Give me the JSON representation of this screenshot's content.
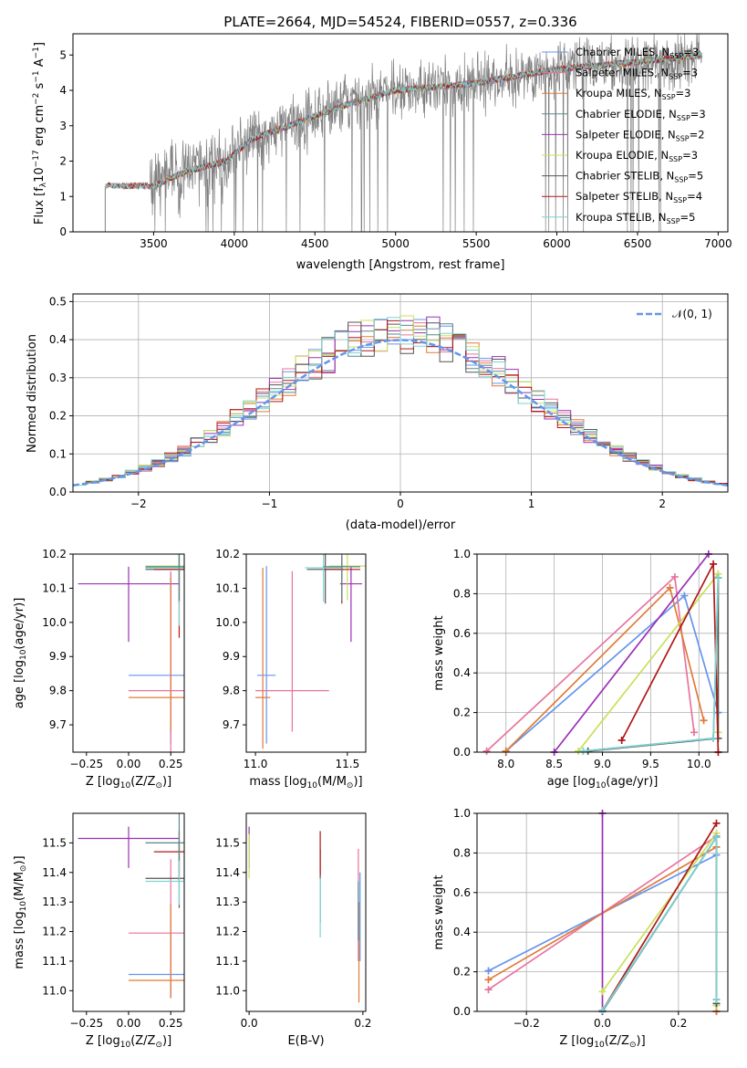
{
  "figure": {
    "title": "PLATE=2664, MJD=54524, FIBERID=0557, z=0.336"
  },
  "models": [
    {
      "name": "Chabrier MILES, N",
      "sub": "SSP",
      "eq": "=3",
      "color": "#6495ed"
    },
    {
      "name": "Salpeter MILES, N",
      "sub": "SSP",
      "eq": "=3",
      "color": "#e8739e"
    },
    {
      "name": "Kroupa MILES, N",
      "sub": "SSP",
      "eq": "=3",
      "color": "#e07b39"
    },
    {
      "name": "Chabrier ELODIE, N",
      "sub": "SSP",
      "eq": "=3",
      "color": "#5a8a8a"
    },
    {
      "name": "Salpeter ELODIE, N",
      "sub": "SSP",
      "eq": "=2",
      "color": "#9b30b5"
    },
    {
      "name": "Kroupa ELODIE, N",
      "sub": "SSP",
      "eq": "=3",
      "color": "#c8e05a"
    },
    {
      "name": "Chabrier STELIB, N",
      "sub": "SSP",
      "eq": "=5",
      "color": "#555555"
    },
    {
      "name": "Salpeter STELIB, N",
      "sub": "SSP",
      "eq": "=4",
      "color": "#b01818"
    },
    {
      "name": "Kroupa STELIB, N",
      "sub": "SSP",
      "eq": "=5",
      "color": "#7fd3d3"
    }
  ],
  "chart_data": [
    {
      "id": "spectrum",
      "type": "line",
      "xlabel": "wavelength [Angstrom, rest frame]",
      "ylabel": "Flux [f",
      "ylabel_parts": {
        "lambda": "λ",
        "exp1": "−17",
        "mid": " erg cm",
        "exp2": "−2",
        "s": " s",
        "exp3": "−1",
        "A": " A",
        "exp4": "−1",
        "close": "]",
        "ten": "10"
      },
      "xlim": [
        3000,
        7060
      ],
      "ylim": [
        0,
        5.6
      ],
      "xticks": [
        3500,
        4000,
        4500,
        5000,
        5500,
        6000,
        6500,
        7000
      ],
      "yticks": [
        0,
        1,
        2,
        3,
        4,
        5
      ],
      "data_color": "#808080",
      "x_range_data": [
        3200,
        6900
      ],
      "continuum_points": [
        [
          3200,
          1.3
        ],
        [
          3500,
          1.3
        ],
        [
          3700,
          1.7
        ],
        [
          3950,
          2.0
        ],
        [
          4100,
          2.6
        ],
        [
          4400,
          3.1
        ],
        [
          4700,
          3.6
        ],
        [
          5000,
          4.0
        ],
        [
          5500,
          4.2
        ],
        [
          6000,
          4.6
        ],
        [
          6500,
          4.8
        ],
        [
          6900,
          5.0
        ]
      ]
    },
    {
      "id": "residuals",
      "type": "histogram",
      "xlabel": "(data-model)/error",
      "ylabel": "Normed distribution",
      "xlim": [
        -2.5,
        2.5
      ],
      "ylim": [
        0,
        0.52
      ],
      "xticks": [
        -2,
        -1,
        0,
        1,
        2
      ],
      "yticks": [
        0,
        0.1,
        0.2,
        0.3,
        0.4,
        0.5
      ],
      "bin_width": 0.1,
      "gaussian_label": "𝒩(0, 1)",
      "gaussian_color": "#6495ed",
      "grid": true
    },
    {
      "id": "age_vs_Z",
      "type": "errorbar",
      "xlabel": "Z [log",
      "xlabel_sub": "10",
      "xlabel_rest": "(Z/Z",
      "xlabel_sun": "⊙",
      "xlabel_close": ")]",
      "ylabel": "age  [log",
      "ylabel_sub": "10",
      "ylabel_rest": "(age/yr)]",
      "xlim": [
        -0.33,
        0.33
      ],
      "ylim": [
        9.62,
        10.2
      ],
      "xticks": [
        -0.25,
        0.0,
        0.25
      ],
      "yticks": [
        9.7,
        9.8,
        9.9,
        10.0,
        10.1,
        10.2
      ],
      "points": [
        {
          "c": 4,
          "x": 0.0,
          "y": 10.113,
          "xerr": 0.3,
          "yerr": [
            0.17,
            0.05
          ]
        },
        {
          "c": 0,
          "x": 0.25,
          "y": 9.845,
          "xerr": 0.25,
          "yerr": [
            0.2,
            0.3
          ]
        },
        {
          "c": 1,
          "x": 0.25,
          "y": 9.8,
          "xerr": 0.25,
          "yerr": [
            0.2,
            0.35
          ]
        },
        {
          "c": 2,
          "x": 0.25,
          "y": 9.78,
          "xerr": 0.25,
          "yerr": [
            0.1,
            0.35
          ]
        },
        {
          "c": 5,
          "x": 0.3,
          "y": 10.165,
          "xerr": 0.2,
          "yerr": [
            0.1,
            0.05
          ]
        },
        {
          "c": 6,
          "x": 0.3,
          "y": 10.155,
          "xerr": 0.2,
          "yerr": [
            0.1,
            0.05
          ]
        },
        {
          "c": 7,
          "x": 0.3,
          "y": 10.155,
          "xerr": 0.15,
          "yerr": [
            0.2,
            0.04
          ]
        },
        {
          "c": 8,
          "x": 0.3,
          "y": 10.16,
          "xerr": 0.2,
          "yerr": [
            0.17,
            0.04
          ]
        },
        {
          "c": 3,
          "x": 0.3,
          "y": 10.163,
          "xerr": 0.2,
          "yerr": [
            0.1,
            0.04
          ]
        }
      ]
    },
    {
      "id": "age_vs_mass",
      "type": "errorbar",
      "xlabel": "mass [log",
      "xlabel_sub": "10",
      "xlabel_rest": "(M/M",
      "xlabel_sun": "⊙",
      "xlabel_close": ")]",
      "xlim": [
        10.95,
        11.6
      ],
      "ylim": [
        9.62,
        10.2
      ],
      "xticks": [
        11.0,
        11.5
      ],
      "yticks": [
        9.7,
        9.8,
        9.9,
        10.0,
        10.1,
        10.2
      ],
      "points": [
        {
          "c": 4,
          "x": 11.52,
          "y": 10.113,
          "xerr": 0.06,
          "yerr": [
            0.17,
            0.05
          ]
        },
        {
          "c": 0,
          "x": 11.06,
          "y": 9.845,
          "xerr": 0.05,
          "yerr": [
            0.2,
            0.32
          ]
        },
        {
          "c": 1,
          "x": 11.2,
          "y": 9.8,
          "xerr": 0.2,
          "yerr": [
            0.12,
            0.35
          ]
        },
        {
          "c": 2,
          "x": 11.04,
          "y": 9.78,
          "xerr": 0.04,
          "yerr": [
            0.15,
            0.38
          ]
        },
        {
          "c": 5,
          "x": 11.5,
          "y": 10.165,
          "xerr": 0.1,
          "yerr": [
            0.1,
            0.05
          ]
        },
        {
          "c": 6,
          "x": 11.38,
          "y": 10.155,
          "xerr": 0.1,
          "yerr": [
            0.1,
            0.05
          ]
        },
        {
          "c": 7,
          "x": 11.47,
          "y": 10.155,
          "xerr": 0.1,
          "yerr": [
            0.1,
            0.04
          ]
        },
        {
          "c": 8,
          "x": 11.37,
          "y": 10.16,
          "xerr": 0.1,
          "yerr": [
            0.1,
            0.04
          ]
        },
        {
          "c": 3,
          "x": 11.47,
          "y": 10.163,
          "xerr": 0.1,
          "yerr": [
            0.1,
            0.04
          ]
        }
      ]
    },
    {
      "id": "weight_vs_age",
      "type": "line",
      "xlabel": "age  [log",
      "xlabel_sub": "10",
      "xlabel_rest": "(age/yr)]",
      "ylabel": "mass weight",
      "xlim": [
        7.7,
        10.3
      ],
      "ylim": [
        0,
        1.0
      ],
      "xticks": [
        8.0,
        8.5,
        9.0,
        9.5,
        10.0
      ],
      "yticks": [
        0.0,
        0.2,
        0.4,
        0.6,
        0.8,
        1.0
      ],
      "series": [
        {
          "c": 0,
          "x": [
            8.0,
            9.85,
            10.2
          ],
          "y": [
            0.005,
            0.79,
            0.2
          ]
        },
        {
          "c": 1,
          "x": [
            7.8,
            9.75,
            9.95
          ],
          "y": [
            0.005,
            0.885,
            0.1
          ]
        },
        {
          "c": 2,
          "x": [
            8.0,
            9.7,
            10.05
          ],
          "y": [
            0.005,
            0.83,
            0.16
          ]
        },
        {
          "c": 3,
          "x": [
            8.8,
            10.15,
            10.2
          ],
          "y": [
            0.005,
            0.07,
            0.88
          ]
        },
        {
          "c": 4,
          "x": [
            8.5,
            10.1
          ],
          "y": [
            0.0,
            1.0
          ]
        },
        {
          "c": 5,
          "x": [
            8.75,
            10.2,
            10.2
          ],
          "y": [
            0.005,
            0.9,
            0.1
          ]
        },
        {
          "c": 6,
          "x": [
            8.85,
            10.2,
            10.2
          ],
          "y": [
            0.005,
            0.07,
            0.88
          ]
        },
        {
          "c": 7,
          "x": [
            9.2,
            10.15,
            10.2
          ],
          "y": [
            0.06,
            0.95,
            0.0
          ]
        },
        {
          "c": 8,
          "x": [
            8.8,
            10.15,
            10.2
          ],
          "y": [
            0.005,
            0.07,
            0.88
          ]
        }
      ]
    },
    {
      "id": "mass_vs_Z",
      "type": "errorbar",
      "xlabel": "Z [log",
      "xlabel_sub": "10",
      "xlabel_rest": "(Z/Z",
      "xlabel_sun": "⊙",
      "xlabel_close": ")]",
      "ylabel": "mass [log",
      "ylabel_sub": "10",
      "ylabel_rest": "(M/M",
      "ylabel_sun": "⊙",
      "ylabel_close": ")]",
      "xlim": [
        -0.33,
        0.33
      ],
      "ylim": [
        10.93,
        11.6
      ],
      "xticks": [
        -0.25,
        0.0,
        0.25
      ],
      "yticks": [
        11.0,
        11.1,
        11.2,
        11.3,
        11.4,
        11.5
      ],
      "points": [
        {
          "c": 4,
          "x": 0.0,
          "y": 11.515,
          "xerr": 0.3,
          "yerr": [
            0.1,
            0.04
          ]
        },
        {
          "c": 0,
          "x": 0.25,
          "y": 11.055,
          "xerr": 0.25,
          "yerr": [
            0.08,
            0.17
          ]
        },
        {
          "c": 1,
          "x": 0.25,
          "y": 11.195,
          "xerr": 0.25,
          "yerr": [
            0.2,
            0.25
          ]
        },
        {
          "c": 2,
          "x": 0.25,
          "y": 11.035,
          "xerr": 0.25,
          "yerr": [
            0.06,
            0.26
          ]
        },
        {
          "c": 5,
          "x": 0.3,
          "y": 11.5,
          "xerr": 0.2,
          "yerr": [
            0.1,
            0.04
          ]
        },
        {
          "c": 6,
          "x": 0.3,
          "y": 11.38,
          "xerr": 0.2,
          "yerr": [
            0.1,
            0.12
          ]
        },
        {
          "c": 7,
          "x": 0.3,
          "y": 11.47,
          "xerr": 0.15,
          "yerr": [
            0.1,
            0.07
          ]
        },
        {
          "c": 8,
          "x": 0.3,
          "y": 11.37,
          "xerr": 0.2,
          "yerr": [
            0.08,
            0.1
          ]
        },
        {
          "c": 3,
          "x": 0.3,
          "y": 11.5,
          "xerr": 0.2,
          "yerr": [
            0.06,
            0.1
          ]
        }
      ]
    },
    {
      "id": "mass_vs_ebv",
      "type": "errorbar",
      "xlabel": "E(B-V)",
      "xlim": [
        -0.005,
        0.205
      ],
      "ylim": [
        10.93,
        11.6
      ],
      "xticks": [
        0.0,
        0.2
      ],
      "yticks": [
        11.0,
        11.1,
        11.2,
        11.3,
        11.4,
        11.5
      ],
      "points": [
        {
          "c": 4,
          "x": 0.0,
          "y": 11.515,
          "xerr": 0,
          "yerr": [
            0.1,
            0.04
          ]
        },
        {
          "c": 5,
          "x": 0.0,
          "y": 11.48,
          "xerr": 0,
          "yerr": [
            0.1,
            0.05
          ]
        },
        {
          "c": 6,
          "x": 0.125,
          "y": 11.38,
          "xerr": 0,
          "yerr": [
            0.15,
            0.1
          ]
        },
        {
          "c": 7,
          "x": 0.125,
          "y": 11.45,
          "xerr": 0,
          "yerr": [
            0.06,
            0.09
          ]
        },
        {
          "c": 8,
          "x": 0.125,
          "y": 11.3,
          "xerr": 0,
          "yerr": [
            0.12,
            0.08
          ]
        },
        {
          "c": 1,
          "x": 0.192,
          "y": 11.3,
          "xerr": 0,
          "yerr": [
            0.2,
            0.18
          ]
        },
        {
          "c": 2,
          "x": 0.193,
          "y": 11.2,
          "xerr": 0,
          "yerr": [
            0.24,
            0.1
          ]
        },
        {
          "c": 0,
          "x": 0.195,
          "y": 11.25,
          "xerr": 0,
          "yerr": [
            0.15,
            0.15
          ]
        },
        {
          "c": 3,
          "x": 0.192,
          "y": 11.27,
          "xerr": 0,
          "yerr": [
            0.1,
            0.1
          ]
        }
      ]
    },
    {
      "id": "weight_vs_Z",
      "type": "line",
      "xlabel": "Z [log",
      "xlabel_sub": "10",
      "xlabel_rest": "(Z/Z",
      "xlabel_sun": "⊙",
      "xlabel_close": ")]",
      "ylabel": "mass weight",
      "xlim": [
        -0.33,
        0.33
      ],
      "ylim": [
        0,
        1.0
      ],
      "xticks": [
        -0.2,
        0.0,
        0.2
      ],
      "yticks": [
        0.0,
        0.2,
        0.4,
        0.6,
        0.8,
        1.0
      ],
      "series": [
        {
          "c": 0,
          "x": [
            -0.3,
            0.3,
            0.3
          ],
          "y": [
            0.205,
            0.79,
            0.0
          ]
        },
        {
          "c": 1,
          "x": [
            -0.3,
            0.3,
            0.3
          ],
          "y": [
            0.11,
            0.885,
            0.0
          ]
        },
        {
          "c": 2,
          "x": [
            -0.3,
            0.3,
            0.3
          ],
          "y": [
            0.16,
            0.83,
            0.0
          ]
        },
        {
          "c": 3,
          "x": [
            0.0,
            0.3,
            0.3
          ],
          "y": [
            0.0,
            0.88,
            0.06
          ]
        },
        {
          "c": 4,
          "x": [
            0.0,
            0.0
          ],
          "y": [
            0.0,
            1.0
          ]
        },
        {
          "c": 5,
          "x": [
            0.0,
            0.3,
            0.3
          ],
          "y": [
            0.1,
            0.9,
            0.03
          ]
        },
        {
          "c": 6,
          "x": [
            0.0,
            0.3,
            0.3
          ],
          "y": [
            0.005,
            0.88,
            0.04
          ]
        },
        {
          "c": 7,
          "x": [
            0.0,
            0.3
          ],
          "y": [
            0.005,
            0.95
          ]
        },
        {
          "c": 8,
          "x": [
            0.0,
            0.3,
            0.3
          ],
          "y": [
            0.005,
            0.88,
            0.06
          ]
        }
      ]
    }
  ]
}
